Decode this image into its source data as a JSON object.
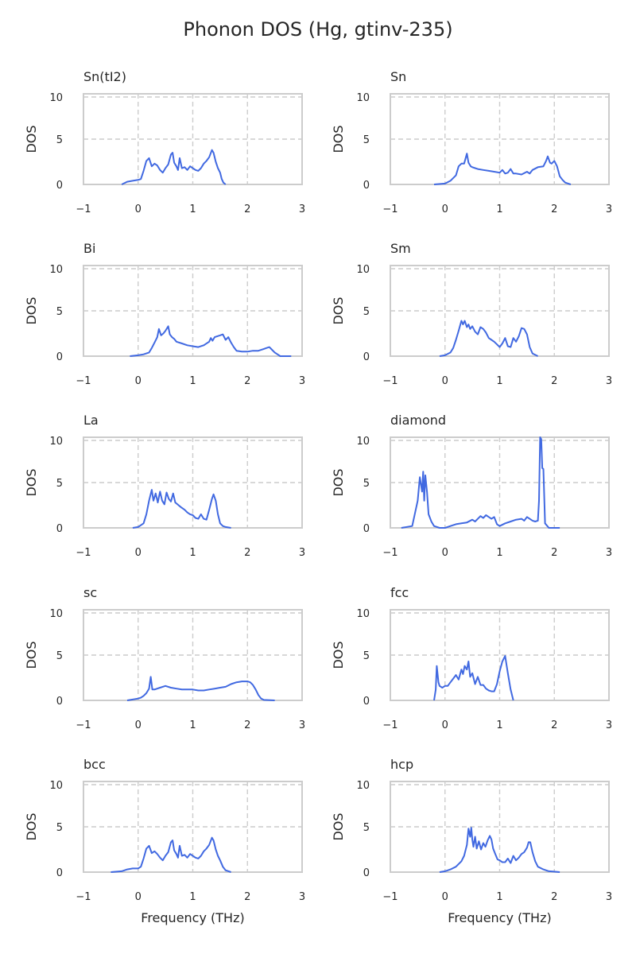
{
  "figure_title": "Phonon DOS (Hg, gtinv-235)",
  "colors": {
    "line": "#4169e1",
    "grid": "#cccccc",
    "spine": "#cccccc",
    "text": "#262626"
  },
  "chart_data": [
    {
      "type": "line",
      "title": "Sn(tI2)",
      "ylabel": "DOS",
      "xlabel": "",
      "xlim": [
        -1,
        3
      ],
      "ylim": [
        0,
        10
      ],
      "xticks": [
        "−1",
        "0",
        "1",
        "2",
        "3"
      ],
      "yticks": [
        "0",
        "5",
        "10"
      ],
      "grid": true,
      "x": [
        -0.3,
        -0.2,
        -0.1,
        0.0,
        0.05,
        0.1,
        0.15,
        0.2,
        0.25,
        0.3,
        0.35,
        0.4,
        0.45,
        0.5,
        0.55,
        0.6,
        0.63,
        0.66,
        0.7,
        0.73,
        0.76,
        0.8,
        0.85,
        0.9,
        0.95,
        1.0,
        1.05,
        1.1,
        1.15,
        1.2,
        1.25,
        1.3,
        1.35,
        1.38,
        1.42,
        1.46,
        1.5,
        1.53,
        1.56,
        1.6
      ],
      "y": [
        0.0,
        0.3,
        0.4,
        0.5,
        0.6,
        1.5,
        2.6,
        2.9,
        2.0,
        2.3,
        2.1,
        1.6,
        1.3,
        1.8,
        2.2,
        3.3,
        3.5,
        2.4,
        2.0,
        1.6,
        2.9,
        1.8,
        1.9,
        1.6,
        2.0,
        1.8,
        1.6,
        1.5,
        1.8,
        2.3,
        2.6,
        3.0,
        3.8,
        3.5,
        2.5,
        1.8,
        1.3,
        0.6,
        0.2,
        0.0
      ]
    },
    {
      "type": "line",
      "title": "Sn",
      "ylabel": "DOS",
      "xlabel": "",
      "xlim": [
        -1,
        3
      ],
      "ylim": [
        0,
        10
      ],
      "xticks": [
        "−1",
        "0",
        "1",
        "2",
        "3"
      ],
      "yticks": [
        "0",
        "5",
        "10"
      ],
      "grid": true,
      "x": [
        -0.2,
        0.0,
        0.1,
        0.2,
        0.25,
        0.3,
        0.35,
        0.4,
        0.43,
        0.47,
        0.5,
        0.55,
        0.6,
        0.7,
        0.8,
        0.9,
        1.0,
        1.05,
        1.1,
        1.15,
        1.2,
        1.25,
        1.3,
        1.4,
        1.5,
        1.55,
        1.6,
        1.7,
        1.8,
        1.85,
        1.88,
        1.92,
        1.95,
        2.0,
        2.05,
        2.1,
        2.15,
        2.2,
        2.3
      ],
      "y": [
        0.0,
        0.1,
        0.4,
        1.0,
        2.0,
        2.3,
        2.3,
        3.4,
        2.4,
        2.0,
        1.9,
        1.8,
        1.7,
        1.6,
        1.5,
        1.4,
        1.3,
        1.6,
        1.2,
        1.3,
        1.7,
        1.2,
        1.2,
        1.1,
        1.4,
        1.2,
        1.6,
        1.9,
        2.0,
        2.6,
        3.1,
        2.4,
        2.3,
        2.6,
        2.0,
        0.9,
        0.5,
        0.2,
        0.0
      ]
    },
    {
      "type": "line",
      "title": "Bi",
      "ylabel": "DOS",
      "xlabel": "",
      "xlim": [
        -1,
        3
      ],
      "ylim": [
        0,
        10
      ],
      "xticks": [
        "−1",
        "0",
        "1",
        "2",
        "3"
      ],
      "yticks": [
        "0",
        "5",
        "10"
      ],
      "grid": true,
      "x": [
        -0.15,
        0.0,
        0.1,
        0.2,
        0.25,
        0.3,
        0.35,
        0.38,
        0.42,
        0.46,
        0.5,
        0.55,
        0.58,
        0.62,
        0.66,
        0.7,
        0.8,
        0.9,
        1.0,
        1.1,
        1.2,
        1.3,
        1.33,
        1.36,
        1.4,
        1.45,
        1.5,
        1.55,
        1.6,
        1.65,
        1.7,
        1.75,
        1.8,
        1.9,
        2.0,
        2.1,
        2.2,
        2.3,
        2.35,
        2.4,
        2.45,
        2.5,
        2.55,
        2.6,
        2.8
      ],
      "y": [
        0.0,
        0.1,
        0.2,
        0.4,
        0.9,
        1.5,
        2.1,
        3.0,
        2.3,
        2.5,
        2.8,
        3.3,
        2.4,
        2.1,
        1.9,
        1.6,
        1.4,
        1.2,
        1.1,
        1.0,
        1.2,
        1.6,
        2.0,
        1.7,
        2.1,
        2.2,
        2.3,
        2.4,
        1.8,
        2.1,
        1.5,
        1.0,
        0.6,
        0.5,
        0.5,
        0.6,
        0.6,
        0.8,
        0.9,
        1.0,
        0.7,
        0.4,
        0.2,
        0.0,
        0.0
      ]
    },
    {
      "type": "line",
      "title": "Sm",
      "ylabel": "DOS",
      "xlabel": "",
      "xlim": [
        -1,
        3
      ],
      "ylim": [
        0,
        10
      ],
      "xticks": [
        "−1",
        "0",
        "1",
        "2",
        "3"
      ],
      "yticks": [
        "0",
        "5",
        "10"
      ],
      "grid": true,
      "x": [
        -0.1,
        0.0,
        0.1,
        0.15,
        0.2,
        0.25,
        0.3,
        0.33,
        0.36,
        0.4,
        0.43,
        0.46,
        0.5,
        0.55,
        0.6,
        0.65,
        0.7,
        0.75,
        0.8,
        0.85,
        0.9,
        0.95,
        1.0,
        1.05,
        1.1,
        1.15,
        1.2,
        1.25,
        1.3,
        1.35,
        1.4,
        1.45,
        1.5,
        1.55,
        1.6,
        1.7
      ],
      "y": [
        0.0,
        0.1,
        0.4,
        0.9,
        1.8,
        2.8,
        3.9,
        3.5,
        3.9,
        3.2,
        3.5,
        3.0,
        3.3,
        2.7,
        2.4,
        3.2,
        3.0,
        2.6,
        2.0,
        1.8,
        1.6,
        1.3,
        1.0,
        1.4,
        2.0,
        1.1,
        1.0,
        2.0,
        1.6,
        2.2,
        3.1,
        3.0,
        2.4,
        1.0,
        0.3,
        0.0
      ]
    },
    {
      "type": "line",
      "title": "La",
      "ylabel": "DOS",
      "xlabel": "",
      "xlim": [
        -1,
        3
      ],
      "ylim": [
        0,
        10
      ],
      "xticks": [
        "−1",
        "0",
        "1",
        "2",
        "3"
      ],
      "yticks": [
        "0",
        "5",
        "10"
      ],
      "grid": true,
      "x": [
        -0.1,
        0.0,
        0.1,
        0.15,
        0.2,
        0.25,
        0.28,
        0.32,
        0.36,
        0.4,
        0.44,
        0.48,
        0.52,
        0.56,
        0.6,
        0.64,
        0.68,
        0.72,
        0.78,
        0.85,
        0.9,
        0.95,
        1.0,
        1.05,
        1.1,
        1.15,
        1.2,
        1.25,
        1.3,
        1.35,
        1.38,
        1.42,
        1.46,
        1.5,
        1.55,
        1.6,
        1.7
      ],
      "y": [
        0.0,
        0.1,
        0.5,
        1.5,
        3.0,
        4.2,
        3.0,
        3.8,
        2.8,
        4.0,
        3.0,
        2.6,
        3.9,
        3.2,
        2.9,
        3.8,
        2.8,
        2.6,
        2.3,
        2.0,
        1.7,
        1.5,
        1.4,
        1.1,
        1.0,
        1.5,
        1.0,
        0.9,
        2.0,
        3.2,
        3.7,
        3.0,
        1.5,
        0.5,
        0.2,
        0.1,
        0.0
      ]
    },
    {
      "type": "line",
      "title": "diamond",
      "ylabel": "DOS",
      "xlabel": "",
      "xlim": [
        -1,
        3
      ],
      "ylim": [
        0,
        10
      ],
      "xticks": [
        "−1",
        "0",
        "1",
        "2",
        "3"
      ],
      "yticks": [
        "0",
        "5",
        "10"
      ],
      "grid": true,
      "x": [
        -0.8,
        -0.6,
        -0.5,
        -0.46,
        -0.42,
        -0.4,
        -0.38,
        -0.36,
        -0.33,
        -0.3,
        -0.25,
        -0.2,
        -0.1,
        0.0,
        0.1,
        0.2,
        0.3,
        0.4,
        0.5,
        0.55,
        0.6,
        0.65,
        0.7,
        0.75,
        0.8,
        0.85,
        0.9,
        0.95,
        1.0,
        1.1,
        1.2,
        1.3,
        1.4,
        1.45,
        1.5,
        1.55,
        1.6,
        1.65,
        1.7,
        1.72,
        1.74,
        1.76,
        1.78,
        1.8,
        1.83,
        1.9,
        2.1
      ],
      "y": [
        0.0,
        0.2,
        3.0,
        5.6,
        4.0,
        6.2,
        3.0,
        5.8,
        4.0,
        1.5,
        0.7,
        0.2,
        0.0,
        0.0,
        0.2,
        0.4,
        0.5,
        0.6,
        0.9,
        0.7,
        1.0,
        1.3,
        1.1,
        1.4,
        1.2,
        1.0,
        1.2,
        0.4,
        0.2,
        0.5,
        0.7,
        0.9,
        1.0,
        0.8,
        1.2,
        1.0,
        0.8,
        0.7,
        0.8,
        3.0,
        10.0,
        9.8,
        6.6,
        6.5,
        0.5,
        0.0,
        0.0
      ]
    },
    {
      "type": "line",
      "title": "sc",
      "ylabel": "DOS",
      "xlabel": "",
      "xlim": [
        -1,
        3
      ],
      "ylim": [
        0,
        10
      ],
      "xticks": [
        "−1",
        "0",
        "1",
        "2",
        "3"
      ],
      "yticks": [
        "0",
        "5",
        "10"
      ],
      "grid": true,
      "x": [
        -0.2,
        -0.1,
        0.0,
        0.05,
        0.1,
        0.15,
        0.2,
        0.23,
        0.26,
        0.3,
        0.4,
        0.5,
        0.6,
        0.7,
        0.8,
        0.9,
        1.0,
        1.1,
        1.2,
        1.3,
        1.4,
        1.5,
        1.6,
        1.7,
        1.8,
        1.9,
        2.0,
        2.05,
        2.1,
        2.15,
        2.2,
        2.25,
        2.3,
        2.5
      ],
      "y": [
        0.0,
        0.1,
        0.2,
        0.3,
        0.5,
        0.8,
        1.3,
        2.6,
        1.2,
        1.2,
        1.4,
        1.6,
        1.4,
        1.3,
        1.2,
        1.2,
        1.2,
        1.1,
        1.1,
        1.2,
        1.3,
        1.4,
        1.5,
        1.8,
        2.0,
        2.1,
        2.1,
        2.0,
        1.7,
        1.2,
        0.6,
        0.2,
        0.05,
        0.0
      ]
    },
    {
      "type": "line",
      "title": "fcc",
      "ylabel": "DOS",
      "xlabel": "",
      "xlim": [
        -1,
        3
      ],
      "ylim": [
        0,
        10
      ],
      "xticks": [
        "−1",
        "0",
        "1",
        "2",
        "3"
      ],
      "yticks": [
        "0",
        "5",
        "10"
      ],
      "grid": true,
      "x": [
        -0.2,
        -0.17,
        -0.15,
        -0.12,
        -0.1,
        -0.05,
        0.0,
        0.05,
        0.1,
        0.15,
        0.2,
        0.25,
        0.3,
        0.33,
        0.36,
        0.4,
        0.43,
        0.46,
        0.5,
        0.55,
        0.6,
        0.65,
        0.7,
        0.75,
        0.8,
        0.85,
        0.9,
        0.95,
        1.0,
        1.05,
        1.1,
        1.15,
        1.2,
        1.25
      ],
      "y": [
        0.0,
        1.2,
        3.8,
        2.0,
        1.6,
        1.4,
        1.6,
        1.6,
        2.0,
        2.4,
        2.8,
        2.3,
        3.4,
        2.9,
        3.8,
        3.4,
        4.3,
        2.6,
        3.0,
        1.8,
        2.6,
        1.7,
        1.7,
        1.3,
        1.1,
        1.0,
        1.0,
        1.8,
        3.2,
        4.3,
        4.9,
        3.0,
        1.2,
        0.0
      ]
    },
    {
      "type": "line",
      "title": "bcc",
      "ylabel": "DOS",
      "xlabel": "Frequency (THz)",
      "xlim": [
        -1,
        3
      ],
      "ylim": [
        0,
        10
      ],
      "xticks": [
        "−1",
        "0",
        "1",
        "2",
        "3"
      ],
      "yticks": [
        "0",
        "5",
        "10"
      ],
      "grid": true,
      "x": [
        -0.5,
        -0.3,
        -0.2,
        -0.1,
        0.0,
        0.05,
        0.1,
        0.15,
        0.2,
        0.25,
        0.3,
        0.35,
        0.4,
        0.45,
        0.5,
        0.55,
        0.6,
        0.63,
        0.66,
        0.7,
        0.73,
        0.76,
        0.8,
        0.85,
        0.9,
        0.95,
        1.0,
        1.05,
        1.1,
        1.15,
        1.2,
        1.25,
        1.3,
        1.35,
        1.38,
        1.42,
        1.46,
        1.5,
        1.55,
        1.6,
        1.7
      ],
      "y": [
        0.0,
        0.1,
        0.3,
        0.4,
        0.4,
        0.6,
        1.5,
        2.6,
        2.9,
        2.1,
        2.3,
        2.0,
        1.6,
        1.3,
        1.8,
        2.2,
        3.3,
        3.5,
        2.4,
        2.0,
        1.6,
        2.9,
        1.8,
        1.9,
        1.6,
        2.0,
        1.8,
        1.6,
        1.5,
        1.8,
        2.3,
        2.6,
        3.0,
        3.8,
        3.5,
        2.5,
        1.8,
        1.3,
        0.6,
        0.2,
        0.0
      ]
    },
    {
      "type": "line",
      "title": "hcp",
      "ylabel": "DOS",
      "xlabel": "Frequency (THz)",
      "xlim": [
        -1,
        3
      ],
      "ylim": [
        0,
        10
      ],
      "xticks": [
        "−1",
        "0",
        "1",
        "2",
        "3"
      ],
      "yticks": [
        "0",
        "5",
        "10"
      ],
      "grid": true,
      "x": [
        -0.1,
        0.0,
        0.1,
        0.2,
        0.3,
        0.35,
        0.4,
        0.43,
        0.46,
        0.48,
        0.5,
        0.52,
        0.55,
        0.58,
        0.62,
        0.66,
        0.7,
        0.74,
        0.78,
        0.82,
        0.85,
        0.88,
        0.92,
        0.96,
        1.0,
        1.05,
        1.1,
        1.15,
        1.2,
        1.25,
        1.3,
        1.35,
        1.4,
        1.45,
        1.5,
        1.53,
        1.56,
        1.6,
        1.65,
        1.7,
        1.8,
        1.9,
        2.0,
        2.1
      ],
      "y": [
        0.0,
        0.1,
        0.3,
        0.6,
        1.2,
        1.8,
        3.0,
        4.8,
        3.9,
        4.9,
        3.6,
        2.8,
        3.9,
        2.6,
        3.4,
        2.5,
        3.2,
        2.8,
        3.5,
        4.0,
        3.6,
        2.6,
        2.0,
        1.4,
        1.3,
        1.1,
        1.1,
        1.5,
        1.0,
        1.8,
        1.3,
        1.6,
        2.0,
        2.2,
        2.7,
        3.3,
        3.3,
        2.2,
        1.2,
        0.6,
        0.3,
        0.1,
        0.05,
        0.0
      ]
    }
  ]
}
